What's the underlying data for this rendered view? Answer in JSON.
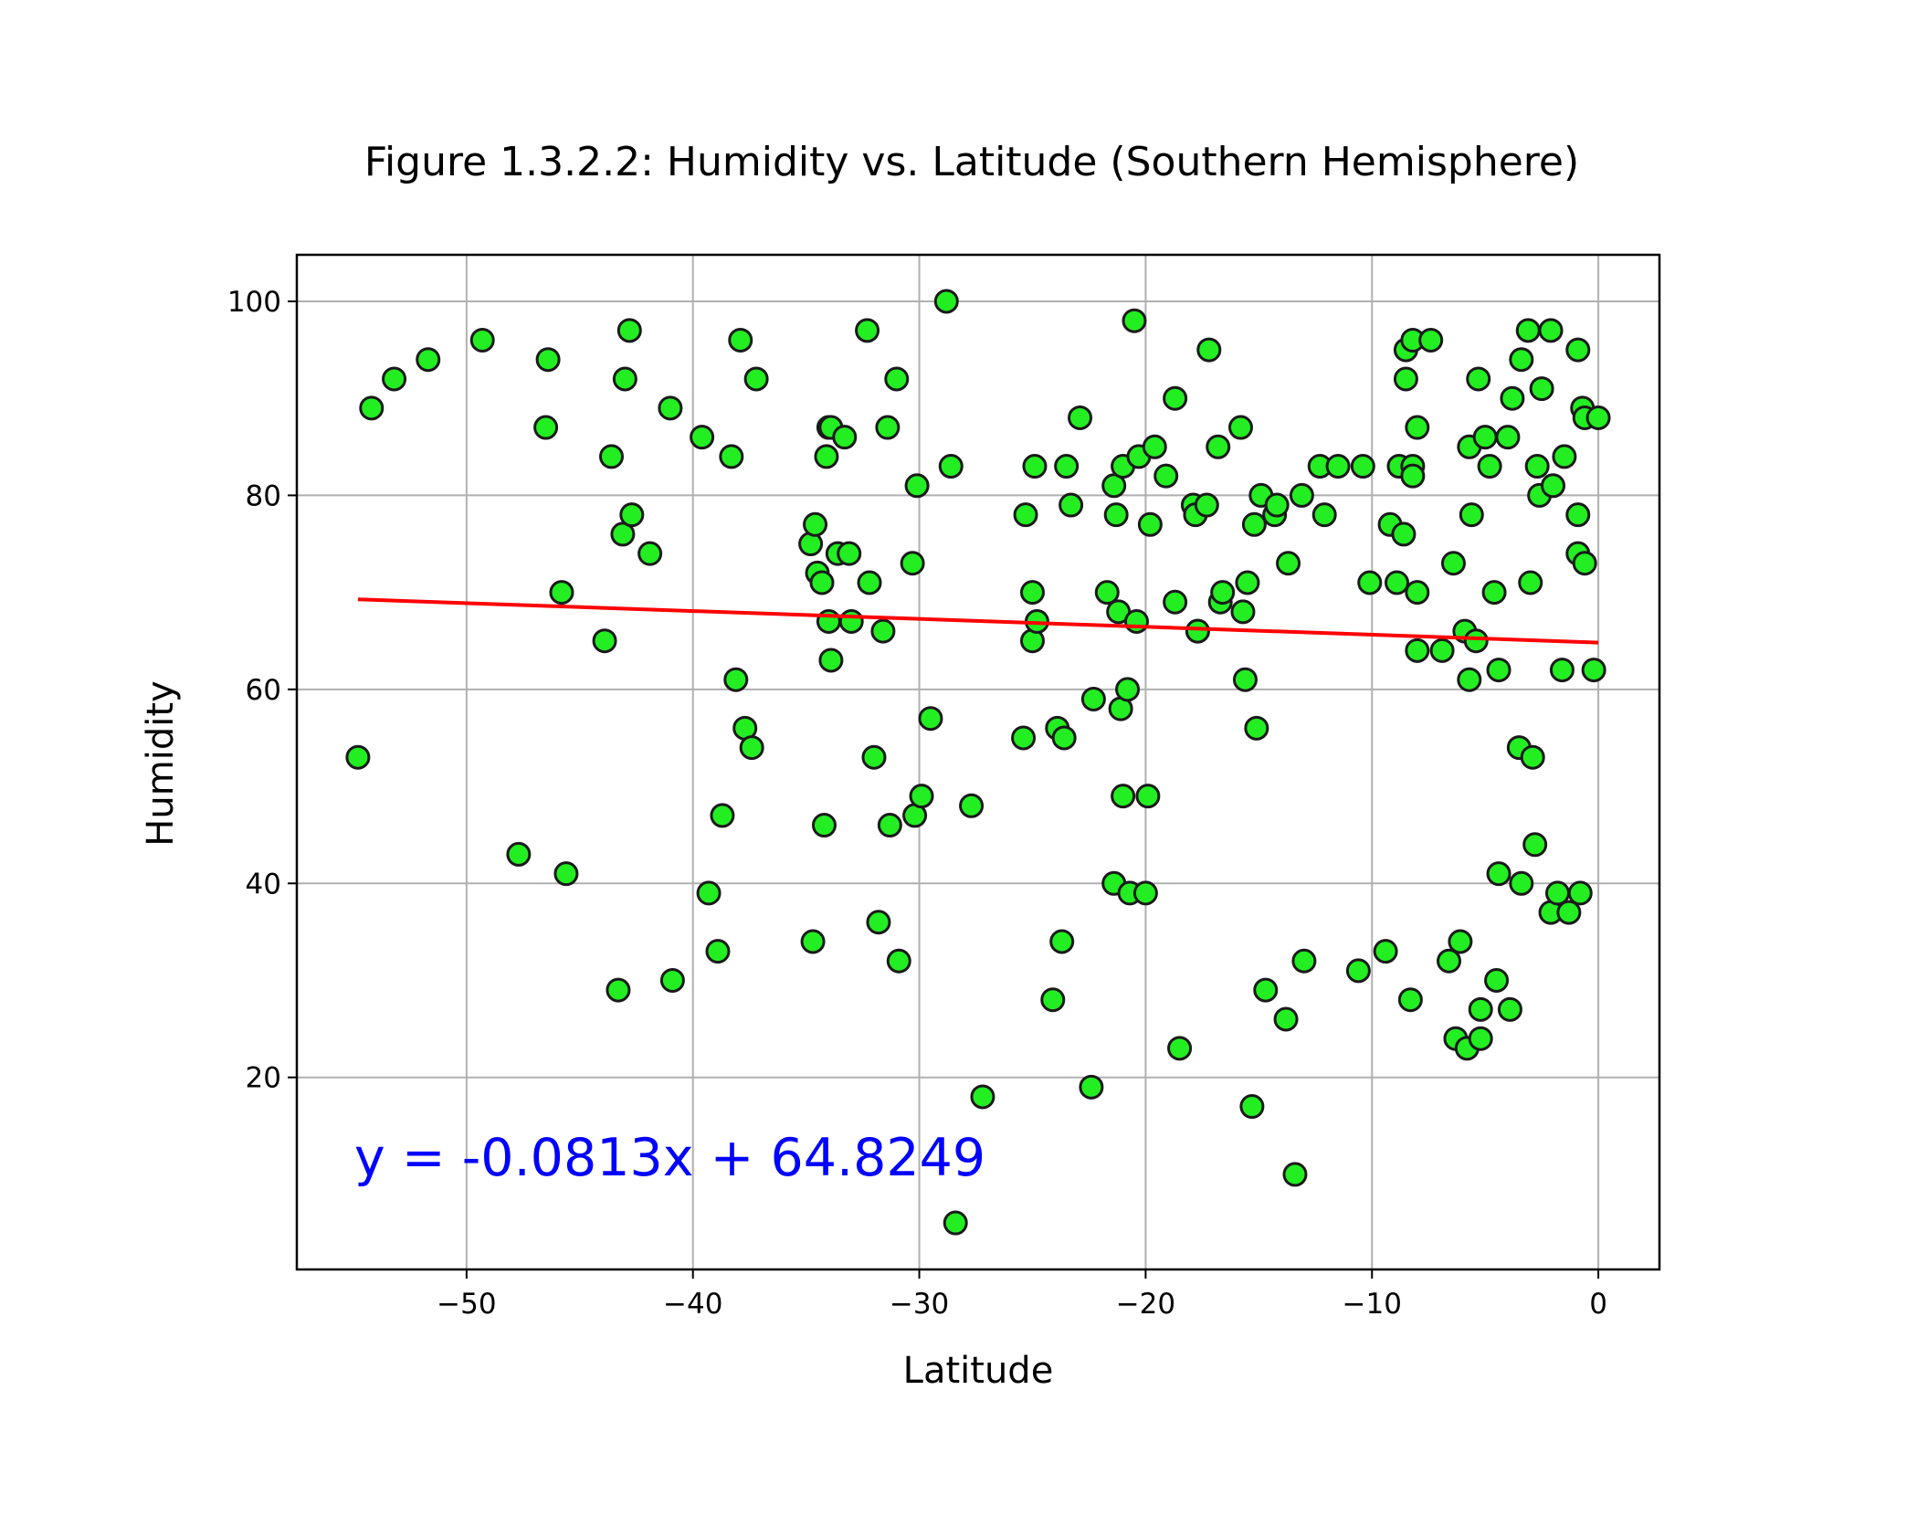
{
  "chart_data": {
    "type": "scatter",
    "title": "Figure 1.3.2.2: Humidity vs. Latitude (Southern Hemisphere)",
    "xlabel": "Latitude",
    "ylabel": "Humidity",
    "xlim": [
      -57.5,
      2.7
    ],
    "ylim": [
      0.2,
      104.8
    ],
    "xticks": [
      -50,
      -40,
      -30,
      -20,
      -10,
      0
    ],
    "yticks": [
      20,
      40,
      60,
      80,
      100
    ],
    "xtick_labels": [
      "−50",
      "−40",
      "−30",
      "−20",
      "−10",
      "0"
    ],
    "ytick_labels": [
      "20",
      "40",
      "60",
      "80",
      "100"
    ],
    "grid": true,
    "point_color": "#22ee22",
    "point_edge_color": "#1a1a1a",
    "line_color": "#ff0000",
    "annotation_color": "#0000ff",
    "regression": {
      "slope": -0.0813,
      "intercept": 64.8249,
      "x_range": [
        -54.8,
        0
      ],
      "label": "y = -0.0813x + 64.8249"
    },
    "points": [
      [
        -54.8,
        53
      ],
      [
        -54.2,
        89
      ],
      [
        -53.2,
        92
      ],
      [
        -51.7,
        94
      ],
      [
        -49.3,
        96
      ],
      [
        -47.7,
        43
      ],
      [
        -46.5,
        87
      ],
      [
        -46.4,
        94
      ],
      [
        -45.8,
        70
      ],
      [
        -45.6,
        41
      ],
      [
        -43.9,
        65
      ],
      [
        -43.6,
        84
      ],
      [
        -43.3,
        29
      ],
      [
        -43.1,
        76
      ],
      [
        -43.0,
        92
      ],
      [
        -42.8,
        97
      ],
      [
        -42.7,
        78
      ],
      [
        -41.9,
        74
      ],
      [
        -41.0,
        89
      ],
      [
        -40.9,
        30
      ],
      [
        -39.6,
        86
      ],
      [
        -39.3,
        39
      ],
      [
        -38.9,
        33
      ],
      [
        -38.7,
        47
      ],
      [
        -38.3,
        84
      ],
      [
        -38.1,
        61
      ],
      [
        -37.9,
        96
      ],
      [
        -37.7,
        56
      ],
      [
        -37.4,
        54
      ],
      [
        -37.2,
        92
      ],
      [
        -34.8,
        75
      ],
      [
        -34.7,
        34
      ],
      [
        -34.6,
        77
      ],
      [
        -34.5,
        72
      ],
      [
        -34.3,
        71
      ],
      [
        -34.2,
        46
      ],
      [
        -34.1,
        84
      ],
      [
        -34.0,
        87
      ],
      [
        -33.9,
        87
      ],
      [
        -34.0,
        67
      ],
      [
        -33.9,
        63
      ],
      [
        -33.6,
        74
      ],
      [
        -33.3,
        86
      ],
      [
        -33.1,
        74
      ],
      [
        -33.0,
        67
      ],
      [
        -32.3,
        97
      ],
      [
        -32.2,
        71
      ],
      [
        -32.0,
        53
      ],
      [
        -31.8,
        36
      ],
      [
        -31.6,
        66
      ],
      [
        -31.4,
        87
      ],
      [
        -31.3,
        46
      ],
      [
        -31.0,
        92
      ],
      [
        -30.9,
        32
      ],
      [
        -30.3,
        73
      ],
      [
        -30.2,
        47
      ],
      [
        -30.1,
        81
      ],
      [
        -29.9,
        49
      ],
      [
        -29.5,
        57
      ],
      [
        -28.8,
        100
      ],
      [
        -28.6,
        83
      ],
      [
        -28.4,
        5
      ],
      [
        -27.7,
        48
      ],
      [
        -27.2,
        18
      ],
      [
        -25.4,
        55
      ],
      [
        -25.3,
        78
      ],
      [
        -25.0,
        70
      ],
      [
        -25.0,
        65
      ],
      [
        -24.9,
        83
      ],
      [
        -24.8,
        67
      ],
      [
        -24.1,
        28
      ],
      [
        -23.9,
        56
      ],
      [
        -23.7,
        34
      ],
      [
        -23.6,
        55
      ],
      [
        -23.5,
        83
      ],
      [
        -23.3,
        79
      ],
      [
        -22.9,
        88
      ],
      [
        -22.4,
        19
      ],
      [
        -22.3,
        59
      ],
      [
        -21.7,
        70
      ],
      [
        -21.4,
        40
      ],
      [
        -21.4,
        81
      ],
      [
        -21.3,
        78
      ],
      [
        -21.2,
        68
      ],
      [
        -21.1,
        58
      ],
      [
        -21.0,
        83
      ],
      [
        -21.0,
        49
      ],
      [
        -20.8,
        60
      ],
      [
        -20.7,
        39
      ],
      [
        -20.5,
        98
      ],
      [
        -20.4,
        67
      ],
      [
        -20.3,
        84
      ],
      [
        -20.0,
        39
      ],
      [
        -19.9,
        49
      ],
      [
        -19.8,
        77
      ],
      [
        -19.6,
        85
      ],
      [
        -19.1,
        82
      ],
      [
        -18.7,
        90
      ],
      [
        -18.7,
        69
      ],
      [
        -18.5,
        23
      ],
      [
        -17.9,
        79
      ],
      [
        -17.8,
        78
      ],
      [
        -17.7,
        66
      ],
      [
        -17.7,
        66
      ],
      [
        -17.3,
        79
      ],
      [
        -17.2,
        95
      ],
      [
        -16.8,
        85
      ],
      [
        -16.7,
        69
      ],
      [
        -16.6,
        70
      ],
      [
        -15.8,
        87
      ],
      [
        -15.7,
        68
      ],
      [
        -15.6,
        61
      ],
      [
        -15.5,
        71
      ],
      [
        -15.3,
        17
      ],
      [
        -15.2,
        77
      ],
      [
        -15.1,
        56
      ],
      [
        -14.9,
        80
      ],
      [
        -14.7,
        29
      ],
      [
        -14.3,
        78
      ],
      [
        -14.2,
        79
      ],
      [
        -13.8,
        26
      ],
      [
        -13.7,
        73
      ],
      [
        -13.4,
        10
      ],
      [
        -13.1,
        80
      ],
      [
        -13.0,
        32
      ],
      [
        -12.3,
        83
      ],
      [
        -12.1,
        78
      ],
      [
        -11.5,
        83
      ],
      [
        -10.6,
        31
      ],
      [
        -10.4,
        83
      ],
      [
        -10.1,
        71
      ],
      [
        -9.4,
        33
      ],
      [
        -9.2,
        77
      ],
      [
        -8.9,
        71
      ],
      [
        -8.8,
        83
      ],
      [
        -8.6,
        76
      ],
      [
        -8.5,
        95
      ],
      [
        -8.5,
        92
      ],
      [
        -8.3,
        28
      ],
      [
        -8.2,
        96
      ],
      [
        -8.2,
        83
      ],
      [
        -8.2,
        82
      ],
      [
        -8.0,
        87
      ],
      [
        -8.0,
        70
      ],
      [
        -8.0,
        64
      ],
      [
        -7.4,
        96
      ],
      [
        -6.9,
        64
      ],
      [
        -6.6,
        32
      ],
      [
        -6.4,
        73
      ],
      [
        -6.3,
        24
      ],
      [
        -6.1,
        34
      ],
      [
        -5.9,
        66
      ],
      [
        -5.8,
        23
      ],
      [
        -5.7,
        85
      ],
      [
        -5.7,
        61
      ],
      [
        -5.6,
        78
      ],
      [
        -5.4,
        65
      ],
      [
        -5.3,
        92
      ],
      [
        -5.2,
        24
      ],
      [
        -5.2,
        27
      ],
      [
        -5.0,
        86
      ],
      [
        -4.8,
        83
      ],
      [
        -4.6,
        70
      ],
      [
        -4.5,
        30
      ],
      [
        -4.4,
        41
      ],
      [
        -4.4,
        62
      ],
      [
        -4.0,
        86
      ],
      [
        -3.9,
        27
      ],
      [
        -3.8,
        90
      ],
      [
        -3.5,
        54
      ],
      [
        -3.4,
        94
      ],
      [
        -3.4,
        40
      ],
      [
        -3.1,
        97
      ],
      [
        -3.0,
        71
      ],
      [
        -2.9,
        53
      ],
      [
        -2.8,
        44
      ],
      [
        -2.7,
        83
      ],
      [
        -2.6,
        80
      ],
      [
        -2.5,
        91
      ],
      [
        -2.1,
        97
      ],
      [
        -2.1,
        37
      ],
      [
        -2.0,
        81
      ],
      [
        -1.8,
        39
      ],
      [
        -1.6,
        62
      ],
      [
        -1.5,
        84
      ],
      [
        -1.3,
        37
      ],
      [
        -0.9,
        95
      ],
      [
        -0.9,
        78
      ],
      [
        -0.9,
        74
      ],
      [
        -0.8,
        39
      ],
      [
        -0.7,
        89
      ],
      [
        -0.6,
        88
      ],
      [
        -0.6,
        73
      ],
      [
        -0.2,
        62
      ],
      [
        0.0,
        88
      ]
    ]
  }
}
